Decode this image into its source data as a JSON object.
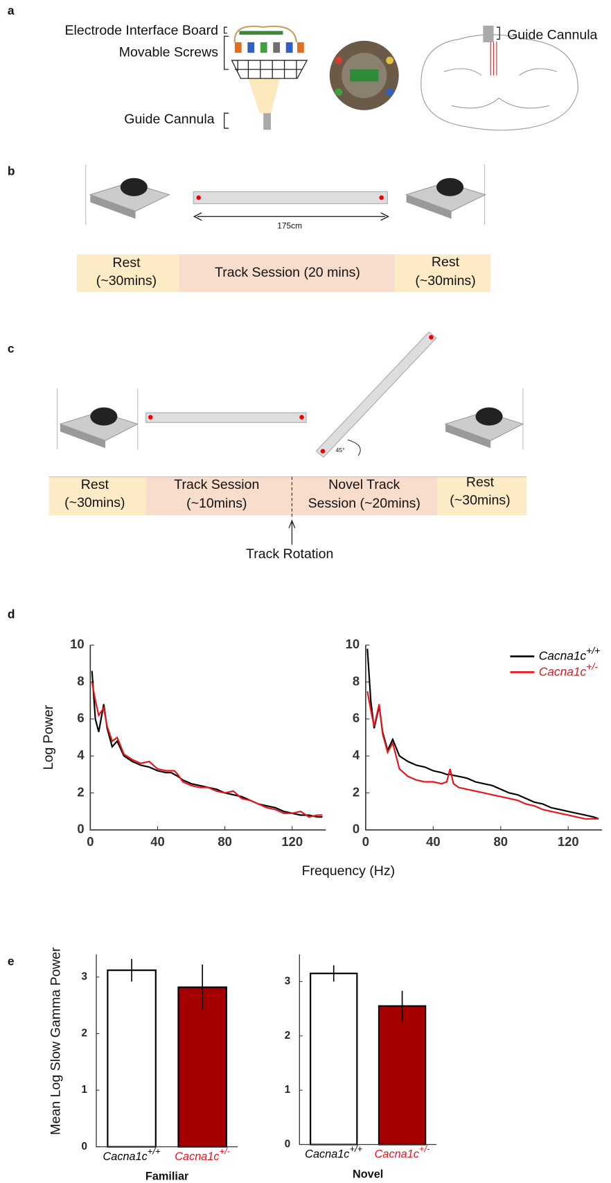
{
  "panel_labels": [
    "a",
    "b",
    "c",
    "d",
    "e"
  ],
  "diagram_a": {
    "electrode_board": "Electrode Interface Board",
    "screws": "Movable Screws",
    "cannula_left": "Guide Cannula",
    "cannula_right": "Guide Cannula"
  },
  "diagram_b": {
    "distance": "175cm",
    "rest_left": [
      "Rest",
      "(~30mins)"
    ],
    "track": "Track Session (20 mins)",
    "rest_right": [
      "Rest",
      "(~30mins)"
    ]
  },
  "diagram_c": {
    "angle": "45°",
    "rest_left": [
      "Rest",
      "(~30mins)"
    ],
    "track": [
      "Track Session",
      "(~10mins)"
    ],
    "novel": [
      "Novel Track",
      "Session (~20mins)"
    ],
    "rest_right": [
      "Rest",
      "(~30mins)"
    ],
    "rotation": "Track Rotation"
  },
  "chart_data": [
    {
      "type": "line",
      "ylabel": "Log Power",
      "xlabel": "Frequency (Hz)",
      "xlim": [
        0,
        140
      ],
      "xticks": [
        0,
        40,
        80,
        120
      ],
      "ylim": [
        0,
        10
      ],
      "yticks": [
        0,
        2,
        4,
        6,
        8,
        10
      ],
      "x": [
        1,
        3,
        5,
        8,
        10,
        13,
        16,
        20,
        25,
        30,
        35,
        40,
        45,
        48,
        50,
        52,
        55,
        60,
        65,
        70,
        75,
        80,
        85,
        90,
        95,
        100,
        105,
        110,
        115,
        120,
        125,
        130,
        135,
        138
      ],
      "series": [
        {
          "name": "Cacna1c+/+",
          "color": "#000000",
          "values": [
            8.6,
            6.0,
            5.3,
            6.8,
            5.5,
            4.5,
            4.8,
            4.0,
            3.7,
            3.5,
            3.4,
            3.2,
            3.1,
            3.1,
            3.0,
            2.9,
            2.7,
            2.5,
            2.4,
            2.3,
            2.2,
            2.0,
            1.9,
            1.8,
            1.6,
            1.4,
            1.3,
            1.2,
            1.0,
            0.9,
            0.8,
            0.8,
            0.7,
            0.7
          ]
        },
        {
          "name": "Cacna1c+/-",
          "color": "#e8141c",
          "values": [
            8.0,
            7.0,
            6.2,
            6.6,
            5.6,
            4.8,
            5.0,
            4.1,
            3.8,
            3.6,
            3.7,
            3.3,
            3.2,
            3.2,
            3.2,
            3.0,
            2.6,
            2.4,
            2.3,
            2.3,
            2.1,
            2.0,
            2.1,
            1.7,
            1.6,
            1.4,
            1.2,
            1.1,
            0.9,
            0.9,
            1.0,
            0.7,
            0.8,
            0.8
          ]
        }
      ]
    },
    {
      "type": "line",
      "legend": "upper right",
      "xlim": [
        0,
        140
      ],
      "xticks": [
        0,
        40,
        80,
        120
      ],
      "ylim": [
        0,
        10
      ],
      "yticks": [
        0,
        2,
        4,
        6,
        8,
        10
      ],
      "x": [
        1,
        3,
        5,
        8,
        10,
        13,
        16,
        20,
        25,
        30,
        35,
        40,
        45,
        48,
        50,
        52,
        55,
        60,
        65,
        70,
        75,
        80,
        85,
        90,
        95,
        100,
        105,
        110,
        115,
        120,
        125,
        130,
        135,
        138
      ],
      "series": [
        {
          "name": "Cacna1c+/+",
          "color": "#000000",
          "values": [
            9.8,
            7.0,
            5.5,
            6.7,
            5.3,
            4.3,
            4.9,
            4.0,
            3.7,
            3.5,
            3.4,
            3.2,
            3.1,
            3.0,
            3.0,
            2.95,
            2.9,
            2.8,
            2.6,
            2.5,
            2.4,
            2.2,
            2.0,
            1.9,
            1.7,
            1.5,
            1.4,
            1.2,
            1.1,
            1.0,
            0.9,
            0.8,
            0.7,
            0.6
          ]
        },
        {
          "name": "Cacna1c+/-",
          "color": "#e8141c",
          "values": [
            7.5,
            6.5,
            5.6,
            6.8,
            5.2,
            4.2,
            4.7,
            3.3,
            2.9,
            2.7,
            2.6,
            2.6,
            2.5,
            2.6,
            3.3,
            2.5,
            2.3,
            2.2,
            2.1,
            2.0,
            1.9,
            1.8,
            1.7,
            1.6,
            1.4,
            1.3,
            1.1,
            1.0,
            0.9,
            0.8,
            0.7,
            0.6,
            0.6,
            0.6
          ]
        }
      ]
    },
    {
      "type": "bar",
      "ylabel": "Mean Log Slow Gamma Power",
      "xlabel": "Familiar",
      "ylim": [
        0,
        3.4
      ],
      "yticks": [
        0,
        1,
        2,
        3
      ],
      "categories": [
        "Cacna1c+/+",
        "Cacna1c+/-"
      ],
      "values": [
        3.12,
        2.82
      ],
      "errors": [
        0.2,
        0.4
      ],
      "colors": [
        "#ffffff",
        "#a50000"
      ],
      "category_colors": [
        "#000000",
        "#e8141c"
      ]
    },
    {
      "type": "bar",
      "xlabel": "Novel",
      "ylim": [
        0,
        3.5
      ],
      "yticks": [
        0,
        1,
        2,
        3
      ],
      "categories": [
        "Cacna1c+/+",
        "Cacna1c+/-"
      ],
      "values": [
        3.15,
        2.55
      ],
      "errors": [
        0.15,
        0.28
      ],
      "colors": [
        "#ffffff",
        "#a50000"
      ],
      "category_colors": [
        "#000000",
        "#e8141c"
      ]
    }
  ]
}
